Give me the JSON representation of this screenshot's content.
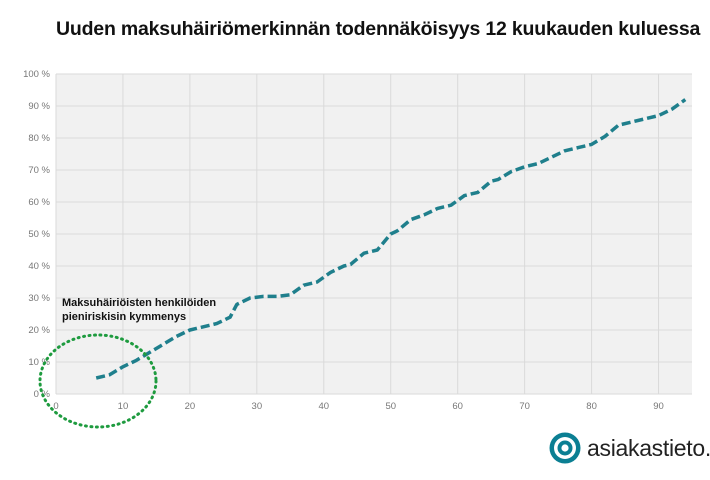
{
  "chart_data": {
    "type": "line",
    "title": "Uuden maksuhäiriömerkinnän todennäköisyys 12 kuukauden kuluessa",
    "xlabel": "",
    "ylabel": "",
    "xlim": [
      0,
      95
    ],
    "ylim": [
      0,
      100
    ],
    "x_ticks": [
      "0",
      "10",
      "20",
      "30",
      "40",
      "50",
      "60",
      "70",
      "80",
      "90"
    ],
    "y_ticks": [
      "0 %",
      "10 %",
      "20 %",
      "30 %",
      "40 %",
      "50 %",
      "60 %",
      "70 %",
      "80 %",
      "90 %",
      "100 %"
    ],
    "grid": true,
    "line_color": "#1f7f8c",
    "line_style": "dashed",
    "series": [
      {
        "x": [
          6,
          8,
          10,
          12,
          14,
          16,
          18,
          20,
          22,
          24,
          26,
          27,
          29,
          31,
          33,
          35,
          37,
          39,
          41,
          43,
          44,
          46,
          48,
          50,
          51,
          53,
          55,
          57,
          59,
          61,
          63,
          65,
          66,
          68,
          70,
          72,
          74,
          76,
          78,
          80,
          82,
          84,
          86,
          88,
          90,
          92,
          94
        ],
        "values": [
          5,
          6,
          8.5,
          10.5,
          13,
          15.5,
          18,
          20,
          21,
          22,
          24,
          28,
          30,
          30.5,
          30.5,
          31,
          34,
          35,
          38,
          40,
          40.5,
          44,
          45,
          50,
          51,
          54.5,
          56,
          58,
          59,
          62,
          63,
          66.5,
          67,
          69.5,
          71,
          72,
          74,
          76,
          77,
          78,
          80.5,
          84,
          85,
          86,
          87,
          89,
          92
        ]
      }
    ],
    "annotation": {
      "line1": "Maksuhäiriöisten henkilöiden",
      "line2": "pieniriskisin kymmenys"
    }
  },
  "brand": {
    "name": "asiakastieto.fi",
    "logo_color": "#0b7f93"
  }
}
